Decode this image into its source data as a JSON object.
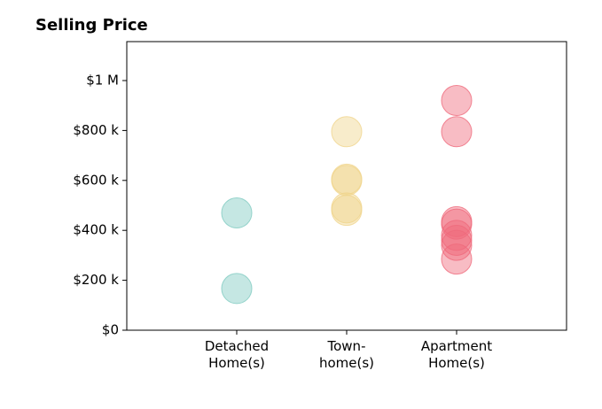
{
  "chart_data": {
    "type": "strip",
    "title": "Selling Price",
    "categories": [
      "Detached\nHome(s)",
      "Town-\nhome(s)",
      "Apartment\nHome(s)"
    ],
    "colors": [
      "#7fcac0",
      "#f0d48c",
      "#ef6a7c"
    ],
    "points": [
      [
        470000,
        167000
      ],
      [
        795000,
        605000,
        600000,
        490000,
        480000
      ],
      [
        920000,
        795000,
        435000,
        425000,
        380000,
        360000,
        340000,
        285000
      ]
    ],
    "ylim": [
      0,
      1156000
    ],
    "yticks": [
      {
        "value": 0,
        "label": "$0"
      },
      {
        "value": 200000,
        "label": "$200 k"
      },
      {
        "value": 400000,
        "label": "$400 k"
      },
      {
        "value": 600000,
        "label": "$600 k"
      },
      {
        "value": 800000,
        "label": "$800 k"
      },
      {
        "value": 1000000,
        "label": "$1 M"
      }
    ]
  }
}
